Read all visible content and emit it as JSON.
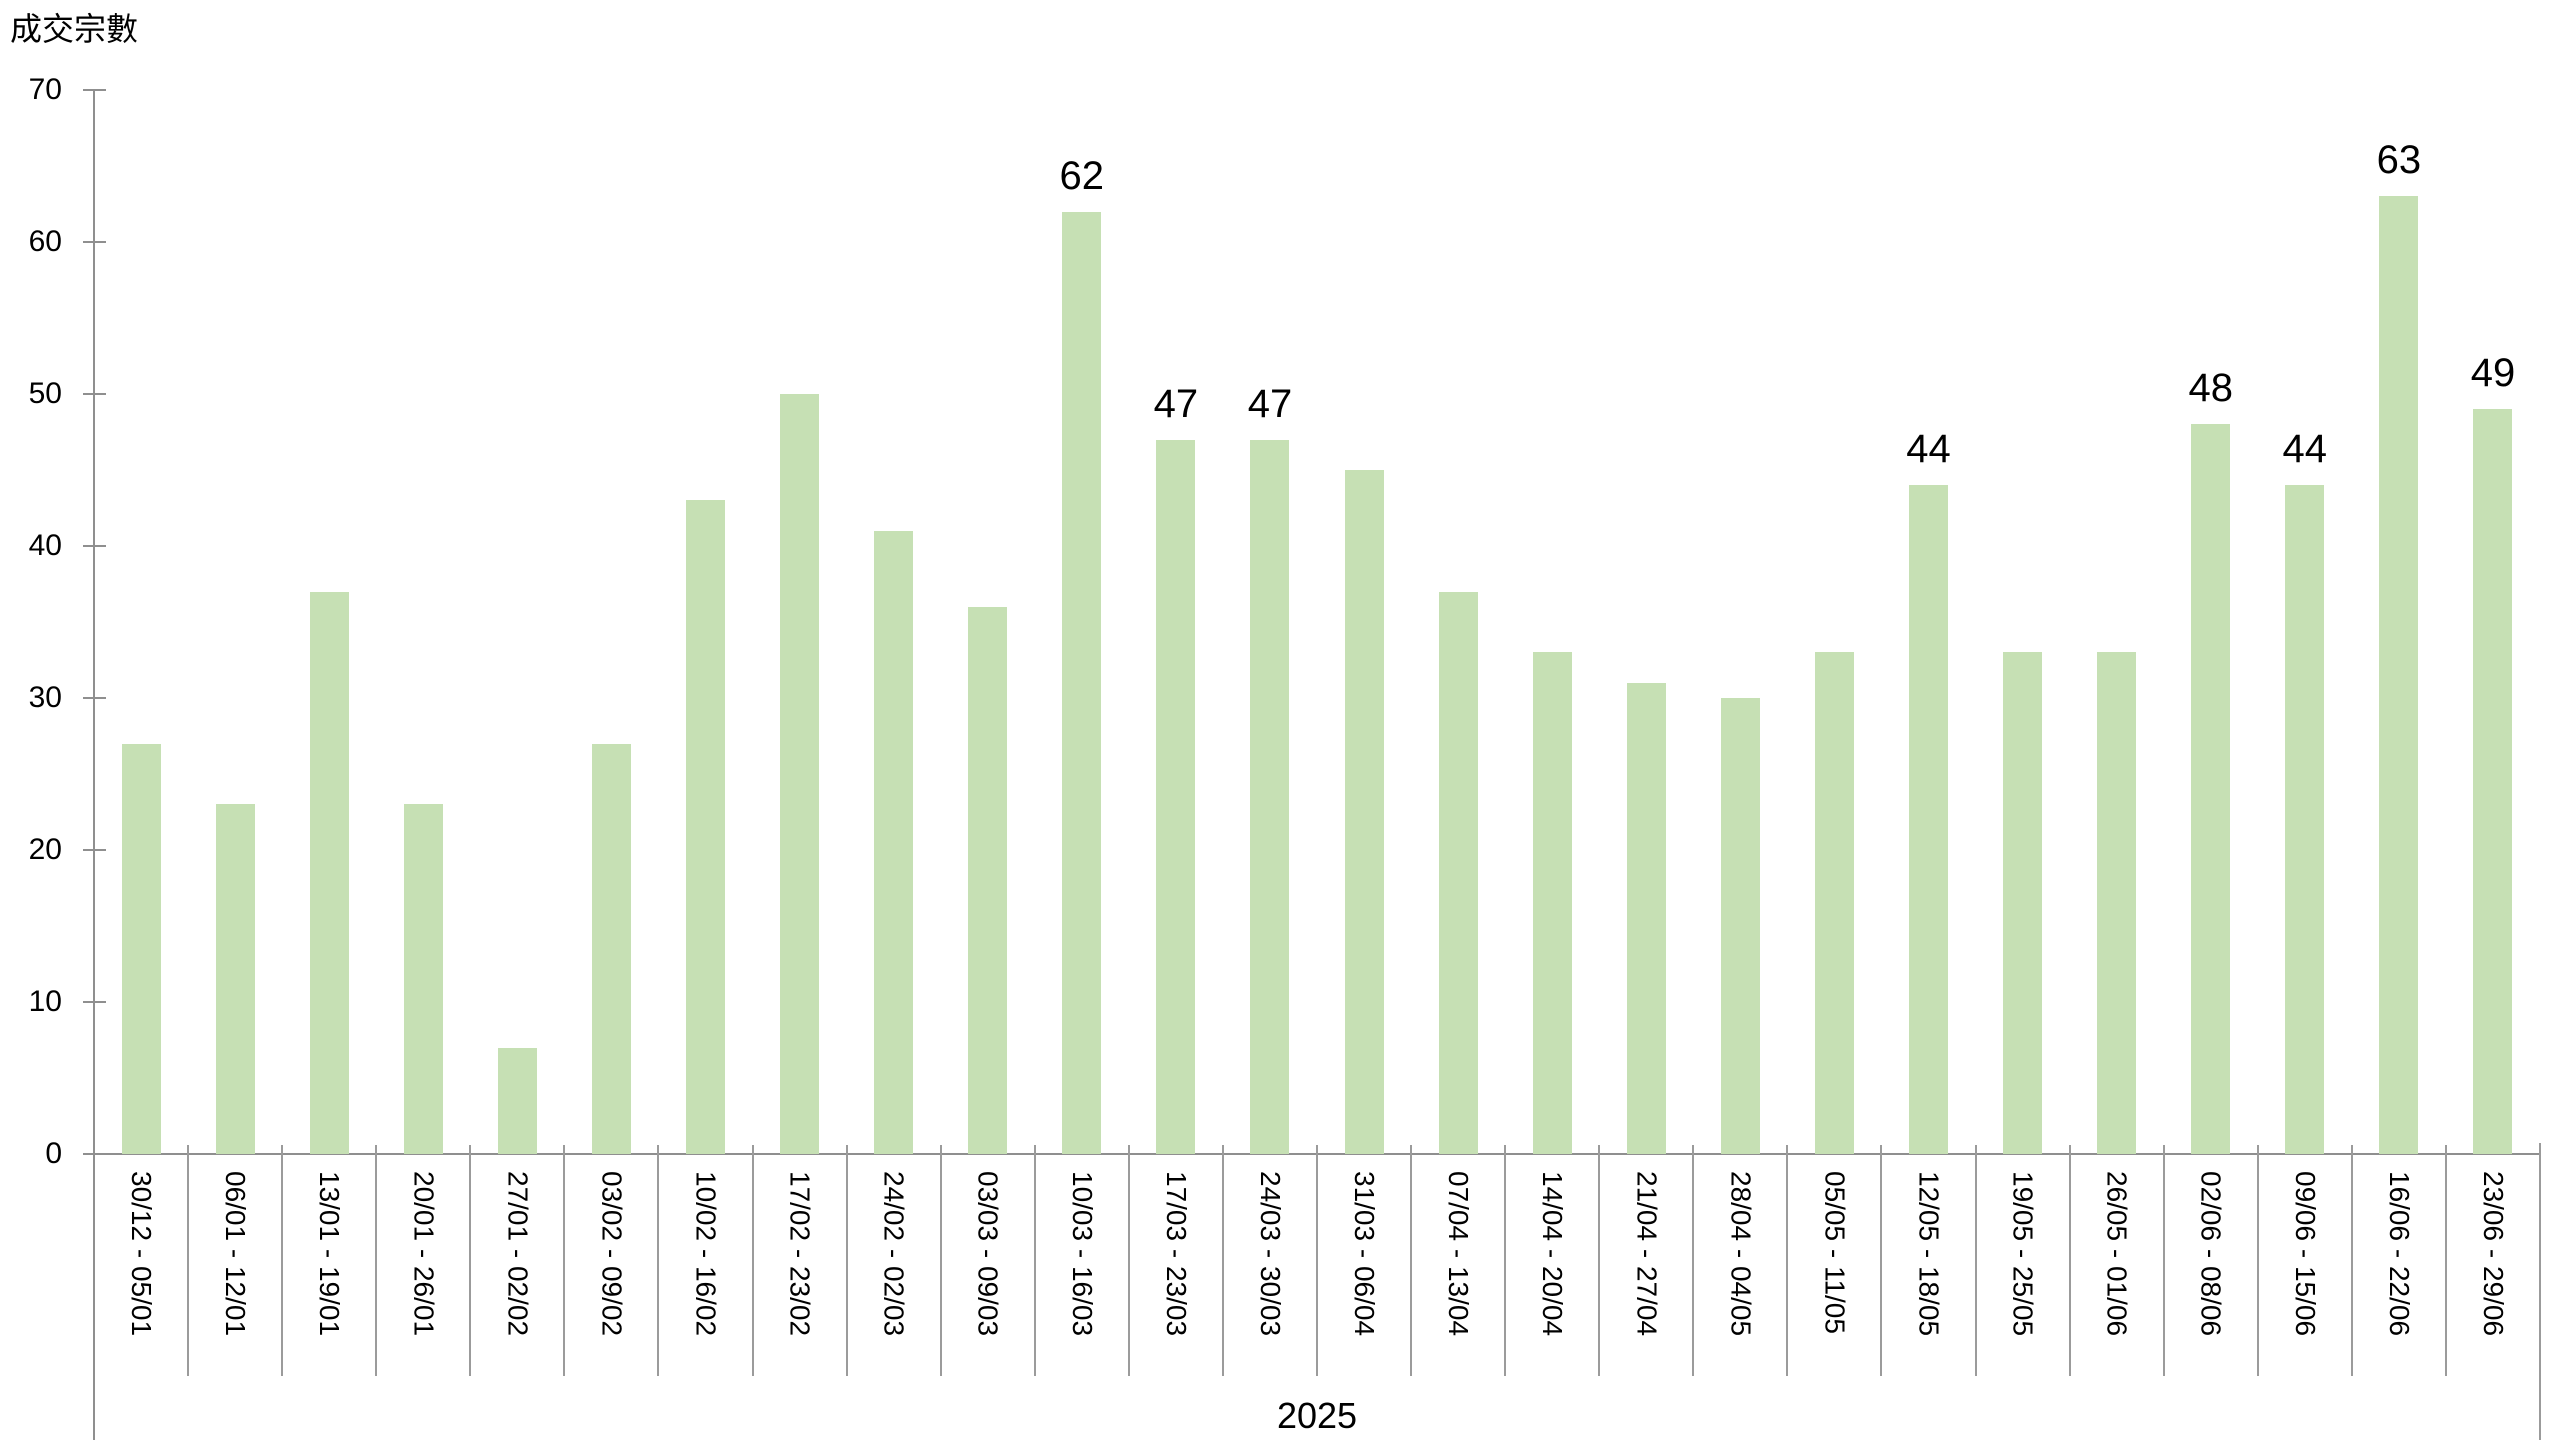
{
  "chart_data": {
    "type": "bar",
    "title": "成交宗數",
    "ylabel": "成交宗數",
    "xlabel": "2025",
    "categories": [
      "30/12 - 05/01",
      "06/01 - 12/01",
      "13/01 - 19/01",
      "20/01 - 26/01",
      "27/01 - 02/02",
      "03/02 - 09/02",
      "10/02 - 16/02",
      "17/02 - 23/02",
      "24/02 - 02/03",
      "03/03 - 09/03",
      "10/03 - 16/03",
      "17/03 - 23/03",
      "24/03 - 30/03",
      "31/03 - 06/04",
      "07/04 - 13/04",
      "14/04 - 20/04",
      "21/04 - 27/04",
      "28/04 - 04/05",
      "05/05 - 11/05",
      "12/05 - 18/05",
      "19/05 - 25/05",
      "26/05 - 01/06",
      "02/06 - 08/06",
      "09/06 - 15/06",
      "16/06 - 22/06",
      "23/06 - 29/06"
    ],
    "values": [
      27,
      23,
      37,
      23,
      7,
      27,
      43,
      50,
      41,
      36,
      62,
      47,
      47,
      45,
      37,
      33,
      31,
      30,
      33,
      44,
      33,
      33,
      48,
      44,
      63,
      49
    ],
    "data_label_indices": [
      10,
      11,
      12,
      19,
      22,
      23,
      24,
      25
    ],
    "data_label_values": [
      62,
      47,
      47,
      44,
      48,
      44,
      63,
      49
    ],
    "ylim": [
      0,
      70
    ],
    "ytick_step": 10,
    "yticks": [
      0,
      10,
      20,
      30,
      40,
      50,
      60,
      70
    ],
    "grid": false,
    "legend": false,
    "colors": {
      "bar": "#c6e0b4",
      "axis": "#8f8f8f",
      "separator": "#9b9b9b",
      "text": "#000000"
    }
  }
}
